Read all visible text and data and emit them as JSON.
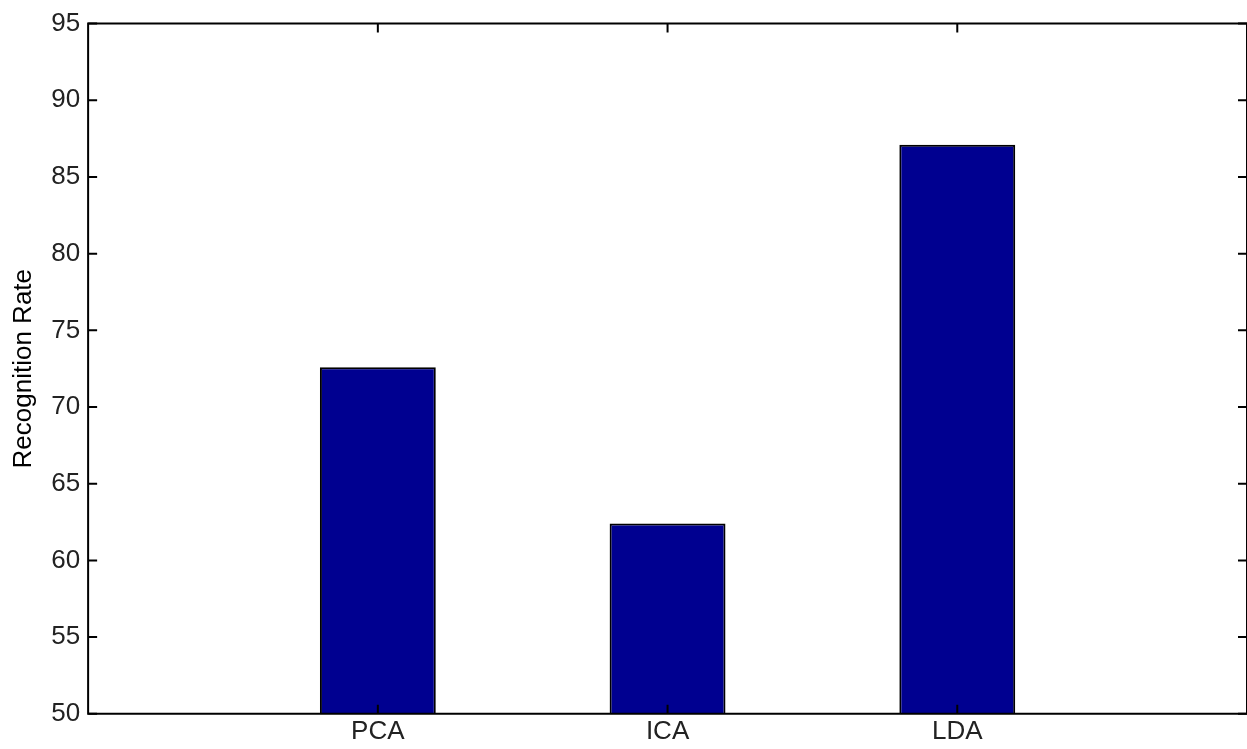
{
  "chart_data": {
    "type": "bar",
    "ylabel": "Recognition Rate",
    "categories": [
      "PCA",
      "ICA",
      "LDA"
    ],
    "values": [
      72.6,
      62.4,
      87.1
    ],
    "color": "#000090",
    "ylim": [
      50,
      95
    ],
    "yticks": [
      50,
      55,
      60,
      65,
      70,
      75,
      80,
      85,
      90,
      95
    ],
    "grid": false,
    "legend": false
  }
}
